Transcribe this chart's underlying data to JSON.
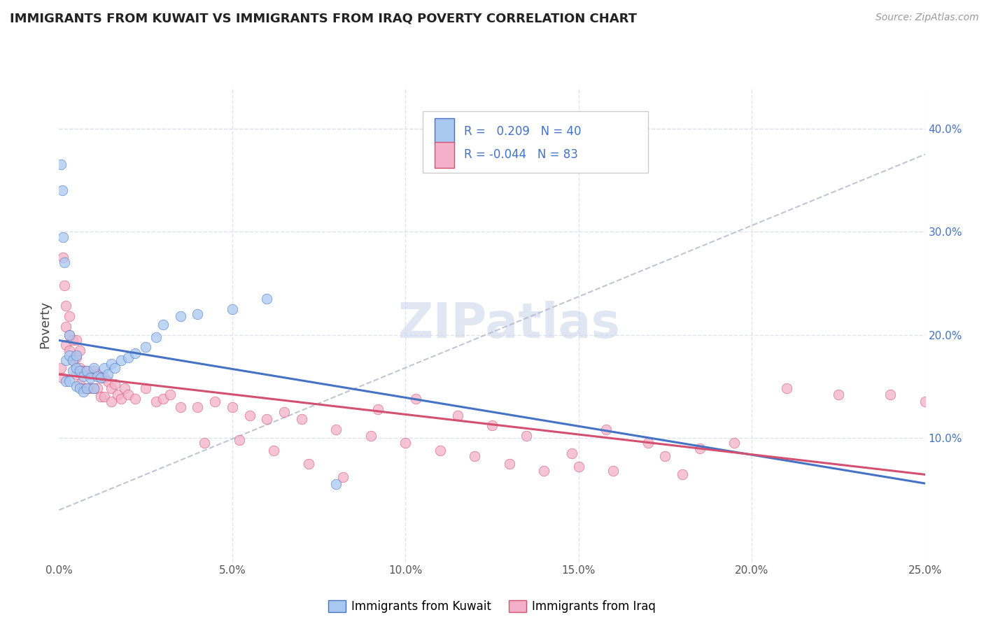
{
  "title": "IMMIGRANTS FROM KUWAIT VS IMMIGRANTS FROM IRAQ POVERTY CORRELATION CHART",
  "source": "Source: ZipAtlas.com",
  "ylabel": "Poverty",
  "xlim": [
    0.0,
    0.25
  ],
  "ylim": [
    -0.02,
    0.44
  ],
  "xticks": [
    0.0,
    0.05,
    0.1,
    0.15,
    0.2,
    0.25
  ],
  "xtick_labels": [
    "0.0%",
    "5.0%",
    "10.0%",
    "15.0%",
    "20.0%",
    "25.0%"
  ],
  "yticks_right": [
    0.1,
    0.2,
    0.3,
    0.4
  ],
  "ytick_labels_right": [
    "10.0%",
    "20.0%",
    "30.0%",
    "40.0%"
  ],
  "legend_R1": "0.209",
  "legend_N1": "40",
  "legend_R2": "-0.044",
  "legend_N2": "83",
  "color_kuwait": "#a8c8f0",
  "color_iraq": "#f4b0c8",
  "color_line_kuwait": "#4472c4",
  "color_line_iraq": "#d45070",
  "color_dashed": "#b0b8c8",
  "background_color": "#ffffff",
  "grid_color": "#dde4f0",
  "title_color": "#222222",
  "legend_text_color": "#4472c4",
  "kuwait_x": [
    0.0005,
    0.001,
    0.0012,
    0.0015,
    0.002,
    0.002,
    0.003,
    0.003,
    0.003,
    0.004,
    0.004,
    0.005,
    0.005,
    0.005,
    0.006,
    0.006,
    0.007,
    0.007,
    0.008,
    0.008,
    0.009,
    0.01,
    0.01,
    0.011,
    0.012,
    0.013,
    0.014,
    0.015,
    0.016,
    0.018,
    0.02,
    0.022,
    0.025,
    0.028,
    0.03,
    0.035,
    0.04,
    0.05,
    0.06,
    0.08
  ],
  "kuwait_y": [
    0.365,
    0.34,
    0.295,
    0.27,
    0.175,
    0.155,
    0.2,
    0.18,
    0.155,
    0.175,
    0.165,
    0.18,
    0.168,
    0.15,
    0.165,
    0.148,
    0.16,
    0.145,
    0.165,
    0.148,
    0.158,
    0.168,
    0.148,
    0.16,
    0.158,
    0.168,
    0.162,
    0.172,
    0.168,
    0.175,
    0.178,
    0.182,
    0.188,
    0.198,
    0.21,
    0.218,
    0.22,
    0.225,
    0.235,
    0.055
  ],
  "iraq_x": [
    0.0005,
    0.001,
    0.0012,
    0.0015,
    0.002,
    0.002,
    0.002,
    0.003,
    0.003,
    0.003,
    0.004,
    0.004,
    0.005,
    0.005,
    0.005,
    0.006,
    0.006,
    0.006,
    0.007,
    0.007,
    0.008,
    0.008,
    0.009,
    0.009,
    0.01,
    0.01,
    0.011,
    0.011,
    0.012,
    0.012,
    0.013,
    0.013,
    0.014,
    0.015,
    0.015,
    0.016,
    0.017,
    0.018,
    0.019,
    0.02,
    0.022,
    0.025,
    0.028,
    0.03,
    0.032,
    0.035,
    0.04,
    0.045,
    0.05,
    0.055,
    0.06,
    0.065,
    0.07,
    0.08,
    0.09,
    0.1,
    0.11,
    0.12,
    0.13,
    0.14,
    0.15,
    0.16,
    0.175,
    0.18,
    0.195,
    0.21,
    0.225,
    0.24,
    0.25,
    0.042,
    0.052,
    0.062,
    0.072,
    0.082,
    0.092,
    0.103,
    0.115,
    0.125,
    0.135,
    0.148,
    0.158,
    0.17,
    0.185
  ],
  "iraq_y": [
    0.168,
    0.158,
    0.275,
    0.248,
    0.228,
    0.208,
    0.19,
    0.218,
    0.2,
    0.185,
    0.195,
    0.175,
    0.195,
    0.178,
    0.162,
    0.185,
    0.168,
    0.152,
    0.165,
    0.148,
    0.165,
    0.148,
    0.162,
    0.148,
    0.165,
    0.148,
    0.162,
    0.148,
    0.158,
    0.14,
    0.158,
    0.14,
    0.155,
    0.148,
    0.135,
    0.152,
    0.142,
    0.138,
    0.148,
    0.142,
    0.138,
    0.148,
    0.135,
    0.138,
    0.142,
    0.13,
    0.13,
    0.135,
    0.13,
    0.122,
    0.118,
    0.125,
    0.118,
    0.108,
    0.102,
    0.095,
    0.088,
    0.082,
    0.075,
    0.068,
    0.072,
    0.068,
    0.082,
    0.065,
    0.095,
    0.148,
    0.142,
    0.142,
    0.135,
    0.095,
    0.098,
    0.088,
    0.075,
    0.062,
    0.128,
    0.138,
    0.122,
    0.112,
    0.102,
    0.085,
    0.108,
    0.095,
    0.09
  ]
}
